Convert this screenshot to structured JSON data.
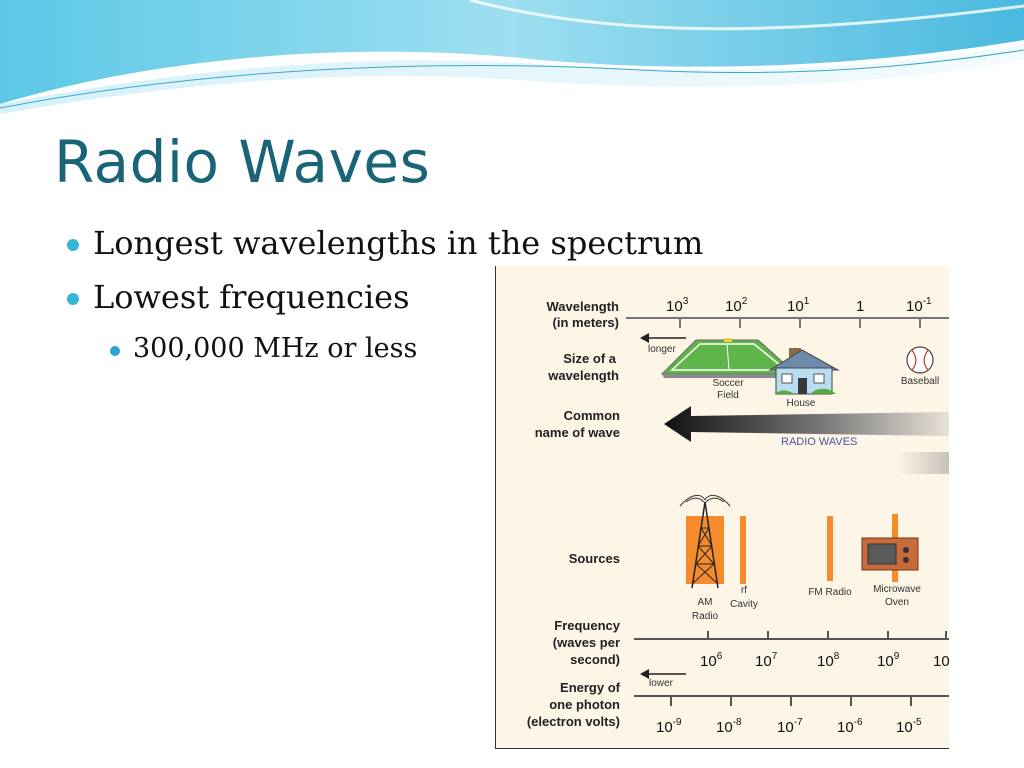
{
  "slide": {
    "title": "Radio Waves",
    "bullets": [
      "Longest wavelengths in the spectrum",
      "Lowest frequencies"
    ],
    "sub_bullets": [
      "300,000 MHz or less"
    ]
  },
  "figure": {
    "row_labels": {
      "wavelength": [
        "Wavelength",
        "(in meters)"
      ],
      "size": [
        "Size of a",
        "wavelength"
      ],
      "common": [
        "Common",
        "name of wave"
      ],
      "sources": [
        "Sources"
      ],
      "frequency": [
        "Frequency",
        "(waves per",
        "second)"
      ],
      "energy": [
        "Energy of",
        "one photon",
        "(electron volts)"
      ]
    },
    "wavelength_ticks": [
      {
        "base": "10",
        "exp": "3"
      },
      {
        "base": "10",
        "exp": "2"
      },
      {
        "base": "10",
        "exp": "1"
      },
      {
        "base": "1",
        "exp": ""
      },
      {
        "base": "10",
        "exp": "-1"
      }
    ],
    "longer": "longer",
    "size_items": {
      "soccer": [
        "Soccer",
        "Field"
      ],
      "house": "House",
      "baseball": "Baseball"
    },
    "wave_name": "RADIO WAVES",
    "source_items": {
      "am": [
        "AM",
        "Radio"
      ],
      "rf": [
        "rf",
        "Cavity"
      ],
      "fm": "FM Radio",
      "microwave": [
        "Microwave",
        "Oven"
      ]
    },
    "frequency_ticks": [
      {
        "base": "10",
        "exp": "6"
      },
      {
        "base": "10",
        "exp": "7"
      },
      {
        "base": "10",
        "exp": "8"
      },
      {
        "base": "10",
        "exp": "9"
      },
      {
        "base": "10",
        "exp": ""
      }
    ],
    "lower": "lower",
    "energy_ticks": [
      {
        "base": "10",
        "exp": "-9"
      },
      {
        "base": "10",
        "exp": "-8"
      },
      {
        "base": "10",
        "exp": "-7"
      },
      {
        "base": "10",
        "exp": "-6"
      },
      {
        "base": "10",
        "exp": "-5"
      }
    ],
    "colors": {
      "title": "#1a6478",
      "bullet": "#33b7d7",
      "figure_bg": "#fdf5e6",
      "orange": "#f58b2a",
      "wave_text": "#4a55a2"
    }
  }
}
